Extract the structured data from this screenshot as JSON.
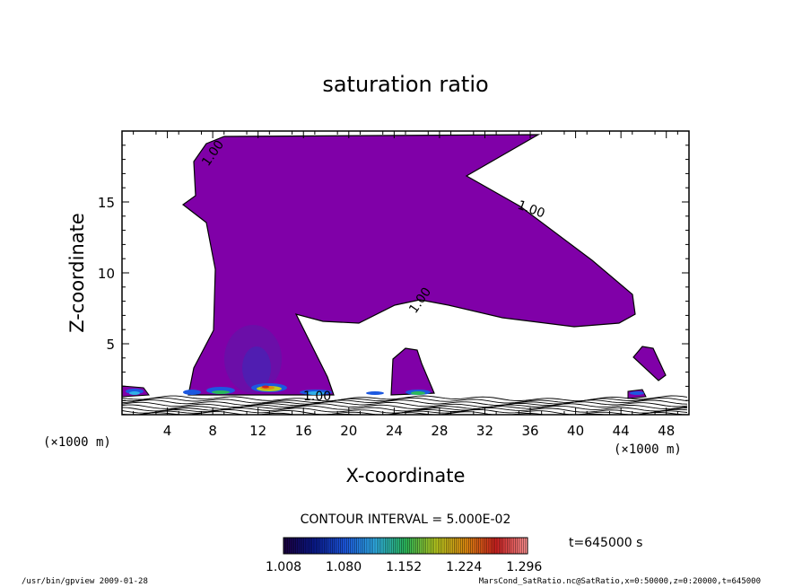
{
  "chart_data": {
    "type": "heatmap",
    "title": "saturation ratio",
    "xlabel": "X-coordinate",
    "ylabel": "Z-coordinate",
    "x_unit": "(×1000 m)",
    "y_unit": "(×1000 m)",
    "xlim": [
      0,
      50
    ],
    "ylim": [
      0,
      20
    ],
    "x_ticks": [
      4,
      8,
      12,
      16,
      20,
      24,
      28,
      32,
      36,
      40,
      44,
      48
    ],
    "y_ticks": [
      5,
      10,
      15
    ],
    "contour_interval": "CONTOUR INTERVAL = 5.000E-02",
    "contour_labels": [
      "1.00",
      "1.00",
      "1.00",
      "1.00"
    ],
    "colorbar": {
      "ticks": [
        "1.008",
        "1.080",
        "1.152",
        "1.224",
        "1.296"
      ],
      "range": [
        1.008,
        1.3
      ],
      "colors": [
        "#1a0040",
        "#0a1a8f",
        "#1c58e0",
        "#30b0e8",
        "#2ab85a",
        "#b8cc20",
        "#e08a10",
        "#d02020",
        "#ff9090"
      ]
    },
    "time_label": "t=645000 s",
    "fill_color": "#8000a8"
  },
  "footer": {
    "left": "/usr/bin/gpview  2009-01-28",
    "right": "MarsCond_SatRatio.nc@SatRatio,x=0:50000,z=0:20000,t=645000"
  }
}
